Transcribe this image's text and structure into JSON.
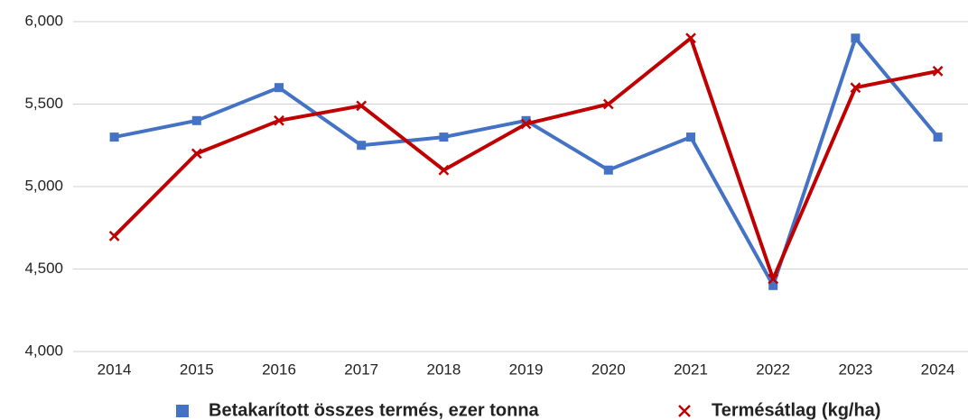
{
  "chart_data": {
    "type": "line",
    "categories": [
      "2014",
      "2015",
      "2016",
      "2017",
      "2018",
      "2019",
      "2020",
      "2021",
      "2022",
      "2023",
      "2024"
    ],
    "series": [
      {
        "name": "Betakarított összes termés, ezer tonna",
        "color": "#4472c4",
        "marker": "square",
        "values": [
          5300,
          5400,
          5600,
          5250,
          5300,
          5400,
          5100,
          5300,
          4400,
          5900,
          5300
        ]
      },
      {
        "name": "Termésátlag (kg/ha)",
        "color": "#c00000",
        "marker": "x",
        "values": [
          4700,
          5200,
          5400,
          5490,
          5100,
          5380,
          5500,
          5900,
          4440,
          5600,
          5700
        ]
      }
    ],
    "ylim": [
      4000,
      6000
    ],
    "yticks": [
      {
        "value": 4000,
        "label": "4,000"
      },
      {
        "value": 4500,
        "label": "4,500"
      },
      {
        "value": 5000,
        "label": "5,000"
      },
      {
        "value": 5500,
        "label": "5,500"
      },
      {
        "value": 6000,
        "label": "6,000"
      }
    ],
    "grid": true,
    "legend": "bottom"
  }
}
